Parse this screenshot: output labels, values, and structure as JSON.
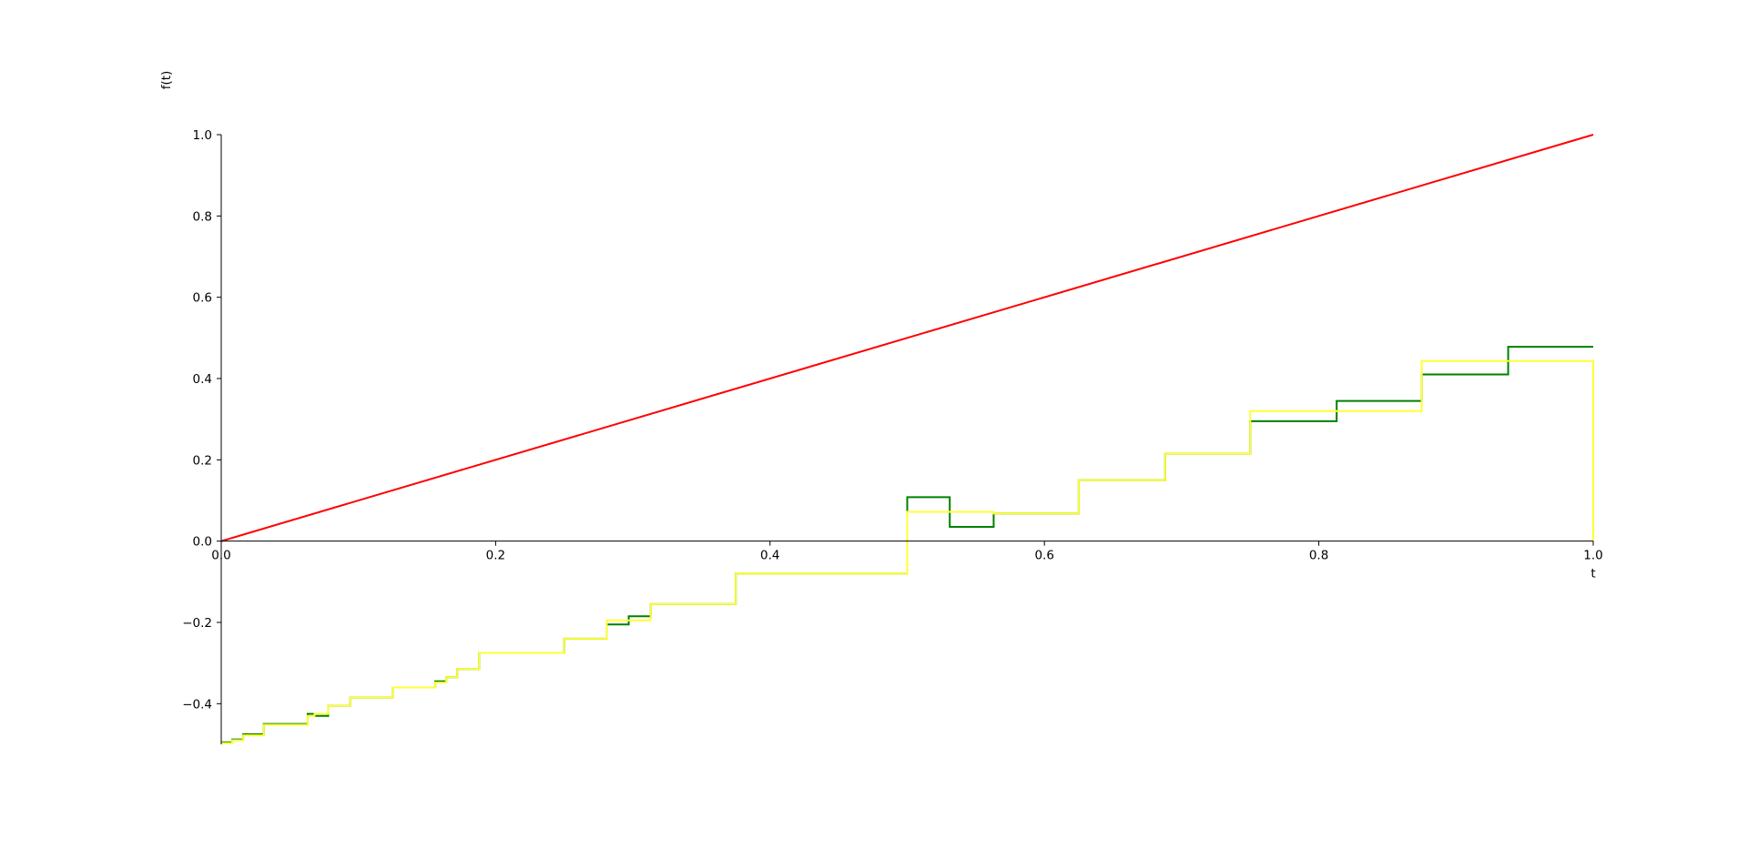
{
  "chart_data": {
    "type": "line",
    "xlabel": "t",
    "ylabel": "f(t)",
    "xlim": [
      0.0,
      1.0
    ],
    "ylim": [
      -0.5,
      1.0
    ],
    "grid": false,
    "x_ticks": [
      "0.0",
      "0.2",
      "0.4",
      "0.6",
      "0.8",
      "1.0"
    ],
    "y_ticks": [
      "−0.4",
      "−0.2",
      "0.0",
      "0.2",
      "0.4",
      "0.6",
      "0.8",
      "1.0"
    ],
    "x_tick_values": [
      0.0,
      0.2,
      0.4,
      0.6,
      0.8,
      1.0
    ],
    "y_tick_values": [
      -0.4,
      -0.2,
      0.0,
      0.2,
      0.4,
      0.6,
      0.8,
      1.0
    ],
    "series": [
      {
        "color": "#ff0000",
        "style": "line",
        "x": [
          0.0,
          1.0
        ],
        "y": [
          0.0,
          1.0
        ]
      },
      {
        "color": "#008000",
        "style": "step",
        "x": [
          0.0,
          0.008,
          0.016,
          0.031,
          0.063,
          0.068,
          0.078,
          0.094,
          0.125,
          0.156,
          0.164,
          0.172,
          0.188,
          0.25,
          0.281,
          0.297,
          0.313,
          0.375,
          0.5,
          0.531,
          0.563,
          0.625,
          0.688,
          0.75,
          0.813,
          0.875,
          0.938,
          1.0
        ],
        "y": [
          -0.495,
          -0.488,
          -0.475,
          -0.45,
          -0.425,
          -0.43,
          -0.405,
          -0.385,
          -0.36,
          -0.345,
          -0.335,
          -0.315,
          -0.275,
          -0.24,
          -0.205,
          -0.185,
          -0.155,
          -0.08,
          0.108,
          0.035,
          0.068,
          0.15,
          0.215,
          0.295,
          0.345,
          0.41,
          0.478,
          0.478
        ]
      },
      {
        "color": "#ffff33",
        "style": "step",
        "x": [
          0.0,
          0.008,
          0.016,
          0.031,
          0.063,
          0.068,
          0.078,
          0.094,
          0.125,
          0.156,
          0.164,
          0.172,
          0.188,
          0.25,
          0.281,
          0.297,
          0.313,
          0.375,
          0.5,
          0.563,
          0.625,
          0.688,
          0.75,
          0.813,
          0.875,
          0.938,
          1.0
        ],
        "y": [
          -0.497,
          -0.49,
          -0.478,
          -0.452,
          -0.43,
          -0.425,
          -0.405,
          -0.385,
          -0.36,
          -0.348,
          -0.335,
          -0.315,
          -0.275,
          -0.24,
          -0.195,
          -0.195,
          -0.155,
          -0.08,
          0.072,
          0.068,
          0.15,
          0.215,
          0.32,
          0.32,
          0.443,
          0.443,
          0.443
        ],
        "drop_to": 0.0
      }
    ]
  }
}
